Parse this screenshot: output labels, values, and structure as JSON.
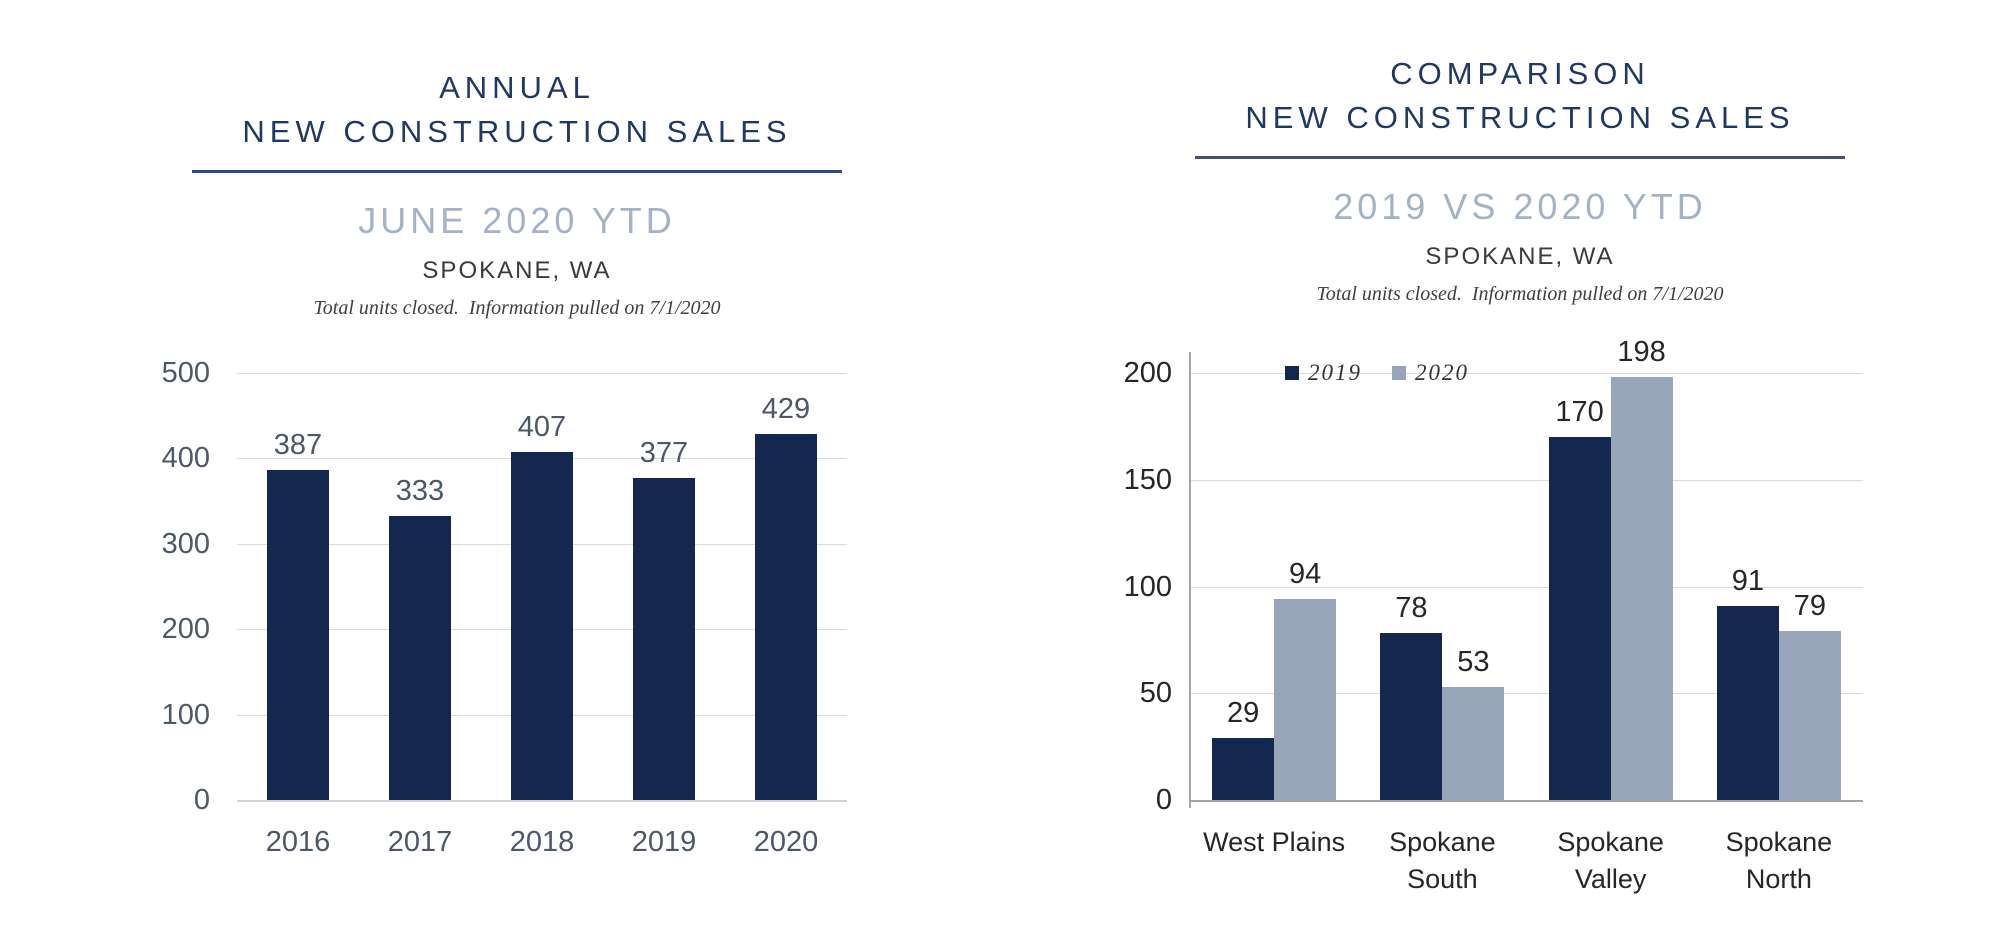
{
  "colors": {
    "navy": "#14284F",
    "steel": "#97A4BA",
    "title_navy": "#1F3864",
    "subtitle_blue": "#A4B2C5",
    "rule_left": "#2F4E7E",
    "rule_right": "#44546A",
    "grid": "#DADADA",
    "axis_line": "#A6A6A6",
    "slate_text": "#4C5868",
    "dark_text": "#262626",
    "location_text": "#3A3A3A",
    "note_text": "#3F3F3F"
  },
  "chart_data": [
    {
      "type": "bar",
      "title_lines": [
        "ANNUAL",
        "NEW CONSTRUCTION SALES"
      ],
      "subtitle": "JUNE 2020 YTD",
      "location": "SPOKANE, WA",
      "footnote": "Total units closed.  Information pulled on 7/1/2020",
      "categories": [
        "2016",
        "2017",
        "2018",
        "2019",
        "2020"
      ],
      "values": [
        387,
        333,
        407,
        377,
        429
      ],
      "bar_color": "#14284F",
      "xlabel": "",
      "ylabel": "",
      "ylim": [
        0,
        500
      ],
      "yticks": [
        500,
        400,
        300,
        200,
        100,
        0
      ],
      "grid": true,
      "y_axis_line": false,
      "legend": false
    },
    {
      "type": "bar",
      "title_lines": [
        "COMPARISON",
        "NEW CONSTRUCTION SALES"
      ],
      "subtitle": "2019 VS 2020 YTD",
      "location": "SPOKANE, WA",
      "footnote": "Total units closed.  Information pulled on 7/1/2020",
      "categories": [
        "West Plains",
        "Spokane South",
        "Spokane Valley",
        "Spokane North"
      ],
      "series": [
        {
          "name": "2019",
          "color": "#14284F",
          "values": [
            29,
            78,
            170,
            91
          ]
        },
        {
          "name": "2020",
          "color": "#97A4BA",
          "values": [
            94,
            53,
            198,
            79
          ]
        }
      ],
      "xlabel": "",
      "ylabel": "",
      "ylim": [
        0,
        200
      ],
      "yticks": [
        200,
        150,
        100,
        50,
        0
      ],
      "grid": true,
      "y_axis_line": true,
      "legend": true,
      "legend_position": "top-inside"
    }
  ]
}
